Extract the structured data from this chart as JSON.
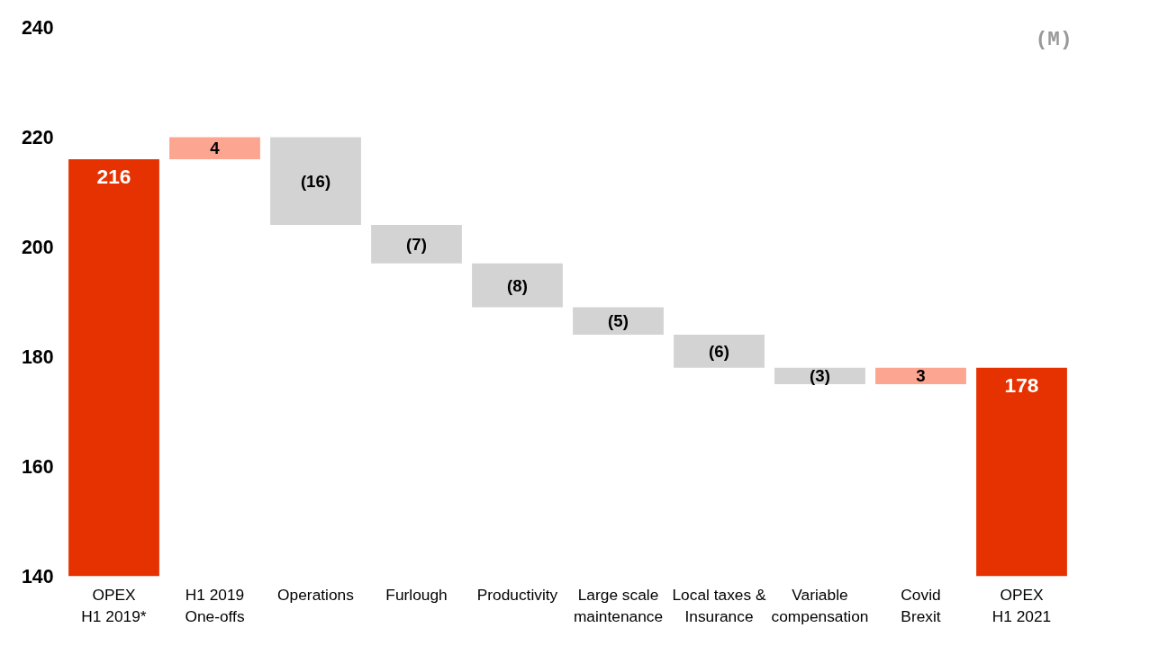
{
  "chart_data": {
    "type": "bar",
    "categories": [
      "OPEX\nH1 2019*",
      "H1 2019\nOne-offs",
      "Operations",
      "Furlough",
      "Productivity",
      "Large scale\nmaintenance",
      "Local taxes &\nInsurance",
      "Variable\ncompensation",
      "Covid\nBrexit",
      "OPEX\nH1 2021"
    ],
    "values": [
      216,
      4,
      -16,
      -7,
      -8,
      -5,
      -6,
      -3,
      3,
      178
    ],
    "base": [
      0,
      216,
      220,
      204,
      197,
      189,
      184,
      178,
      175,
      0
    ],
    "colors": [
      "#e63200",
      "#fca590",
      "#d3d3d3",
      "#d3d3d3",
      "#d3d3d3",
      "#d3d3d3",
      "#d3d3d3",
      "#d3d3d3",
      "#fca590",
      "#e63200"
    ],
    "value_labels": [
      "216",
      "4",
      "(16)",
      "(7)",
      "(8)",
      "(5)",
      "(6)",
      "(3)",
      "3",
      "178"
    ],
    "ylim": [
      140,
      240
    ],
    "yticks": [
      140,
      160,
      180,
      200,
      220,
      240
    ],
    "grid": false,
    "annotations": [
      "(M)"
    ]
  }
}
